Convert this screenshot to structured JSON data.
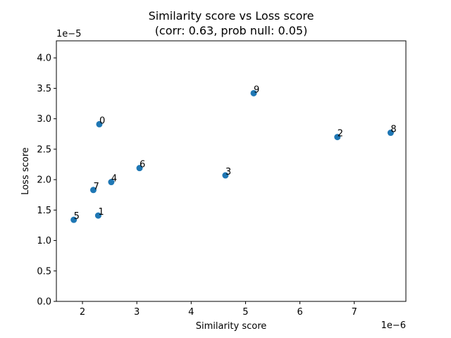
{
  "chart_data": {
    "type": "scatter",
    "title": "Similarity score vs Loss score",
    "subtitle": "(corr: 0.63, prob null: 0.05)",
    "xlabel": "Similarity score",
    "ylabel": "Loss score",
    "x_offset_text": "1e−6",
    "y_offset_text": "1e−5",
    "xlim": [
      1.52,
      7.95
    ],
    "ylim": [
      0.0,
      4.28
    ],
    "x_ticks": [
      2,
      3,
      4,
      5,
      6,
      7
    ],
    "x_tick_labels": [
      "2",
      "3",
      "4",
      "5",
      "6",
      "7"
    ],
    "y_ticks": [
      0.0,
      0.5,
      1.0,
      1.5,
      2.0,
      2.5,
      3.0,
      3.5,
      4.0
    ],
    "y_tick_labels": [
      "0.0",
      "0.5",
      "1.0",
      "1.5",
      "2.0",
      "2.5",
      "3.0",
      "3.5",
      "4.0"
    ],
    "grid": false,
    "marker_color": "#1f77b4",
    "points": [
      {
        "label": "0",
        "x": 2.31,
        "y": 2.91
      },
      {
        "label": "1",
        "x": 2.29,
        "y": 1.41
      },
      {
        "label": "2",
        "x": 6.69,
        "y": 2.7
      },
      {
        "label": "3",
        "x": 4.63,
        "y": 2.07
      },
      {
        "label": "4",
        "x": 2.53,
        "y": 1.96
      },
      {
        "label": "5",
        "x": 1.84,
        "y": 1.34
      },
      {
        "label": "6",
        "x": 3.05,
        "y": 2.19
      },
      {
        "label": "7",
        "x": 2.2,
        "y": 1.83
      },
      {
        "label": "8",
        "x": 7.67,
        "y": 2.77
      },
      {
        "label": "9",
        "x": 5.15,
        "y": 3.42
      }
    ]
  }
}
